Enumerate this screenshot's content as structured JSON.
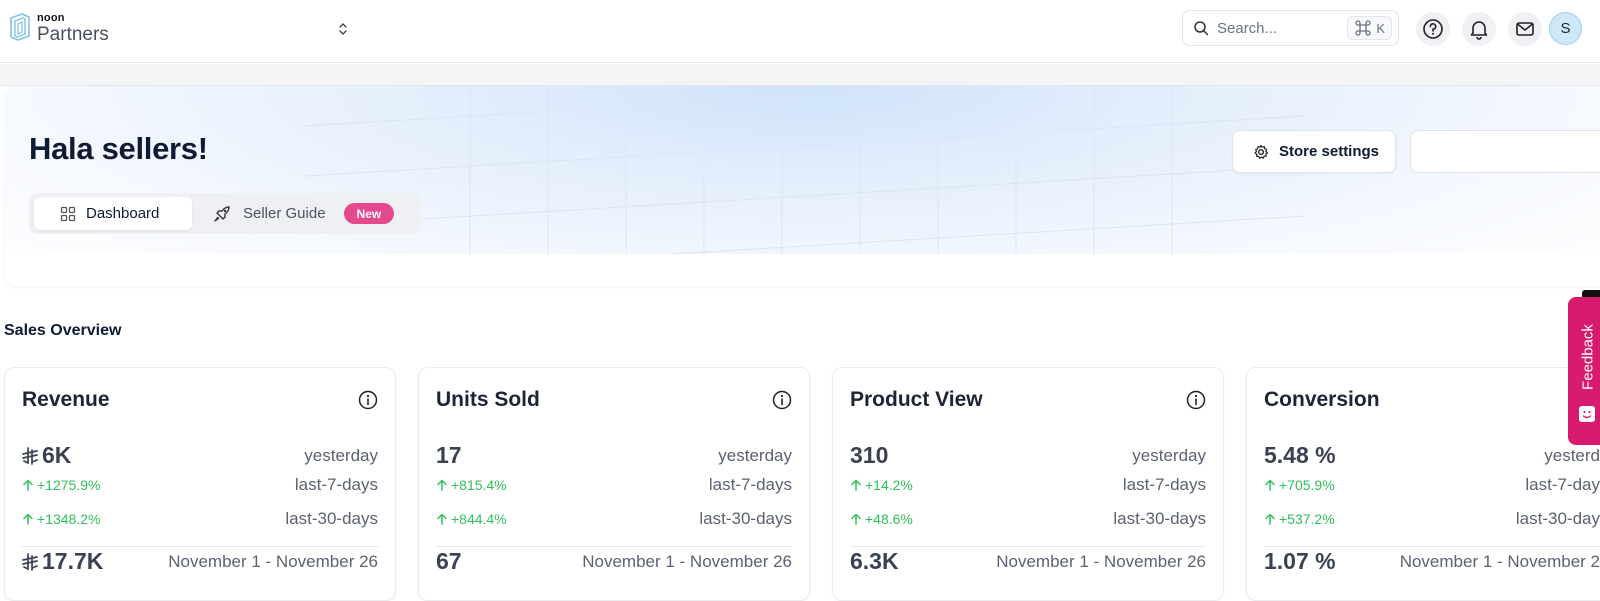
{
  "topbar": {
    "logo_small": "noon",
    "logo_big": "Partners",
    "search_placeholder": "Search...",
    "search_shortcut_key": "K",
    "avatar_initial": "S"
  },
  "hero": {
    "title": "Hala sellers!",
    "tabs": [
      {
        "label": "Dashboard"
      },
      {
        "label": "Seller Guide",
        "badge": "New"
      }
    ],
    "store_settings_label": "Store settings"
  },
  "sales": {
    "section_title": "Sales Overview",
    "cards": [
      {
        "title": "Revenue",
        "yesterday_value": "6K",
        "yesterday_label": "yesterday",
        "week_change": "+1275.9%",
        "week_label": "last-7-days",
        "month_change": "+1348.2%",
        "month_label": "last-30-days",
        "period_value": "17.7K",
        "period_label": "November 1 - November 26"
      },
      {
        "title": "Units Sold",
        "yesterday_value": "17",
        "yesterday_label": "yesterday",
        "week_change": "+815.4%",
        "week_label": "last-7-days",
        "month_change": "+844.4%",
        "month_label": "last-30-days",
        "period_value": "67",
        "period_label": "November 1 - November 26"
      },
      {
        "title": "Product View",
        "yesterday_value": "310",
        "yesterday_label": "yesterday",
        "week_change": "+14.2%",
        "week_label": "last-7-days",
        "month_change": "+48.6%",
        "month_label": "last-30-days",
        "period_value": "6.3K",
        "period_label": "November 1 - November 26"
      },
      {
        "title": "Conversion",
        "yesterday_value": "5.48 %",
        "yesterday_label": "yesterd",
        "week_change": "+705.9%",
        "week_label": "last-7-day",
        "month_change": "+537.2%",
        "month_label": "last-30-day",
        "period_value": "1.07 %",
        "period_label": "November 1 - November 2"
      }
    ]
  },
  "feedback": {
    "label": "Feedback"
  },
  "colors": {
    "accent_pink": "#e4488e",
    "feedback_bg": "#d81b6e",
    "positive": "#2fbf5b",
    "title": "#0e1a36"
  },
  "icons": [
    "search-icon",
    "command-icon",
    "help-icon",
    "bell-icon",
    "mail-icon",
    "grid-icon",
    "rocket-icon",
    "gear-icon",
    "info-icon",
    "arrow-up-icon",
    "riyal-currency-icon",
    "feedback-emoji-icon"
  ]
}
